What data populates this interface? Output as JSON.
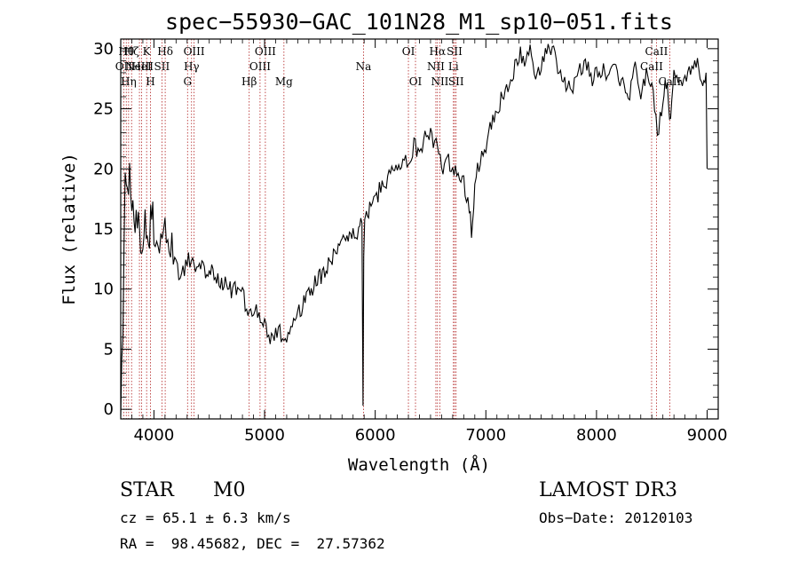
{
  "chart_data": {
    "type": "line",
    "title": "spec−55930−GAC_101N28_M1_sp10−051.fits",
    "xlabel": "Wavelength (Å)",
    "ylabel": "Flux (relative)",
    "xlim": [
      3700,
      9100
    ],
    "ylim": [
      -0.8,
      30.8
    ],
    "x_ticks": [
      4000,
      5000,
      6000,
      7000,
      8000,
      9000
    ],
    "x_tick_labels": [
      "4000",
      "5000",
      "6000",
      "7000",
      "8000",
      "9000"
    ],
    "y_ticks": [
      0,
      5,
      10,
      15,
      20,
      25,
      30
    ],
    "y_tick_labels": [
      "0",
      "5",
      "10",
      "15",
      "20",
      "25",
      "30"
    ],
    "series": [
      {
        "name": "spectrum",
        "color": "#000000",
        "x": [
          3700,
          3720,
          3740,
          3760,
          3780,
          3800,
          3830,
          3860,
          3890,
          3920,
          3950,
          3980,
          4000,
          4050,
          4100,
          4150,
          4200,
          4250,
          4300,
          4350,
          4400,
          4500,
          4600,
          4700,
          4800,
          4850,
          4900,
          4950,
          5000,
          5050,
          5100,
          5150,
          5200,
          5250,
          5300,
          5400,
          5500,
          5600,
          5700,
          5800,
          5850,
          5880,
          5890,
          5896,
          5905,
          5920,
          5950,
          6000,
          6050,
          6100,
          6150,
          6200,
          6250,
          6300,
          6350,
          6400,
          6450,
          6500,
          6550,
          6600,
          6650,
          6700,
          6750,
          6800,
          6850,
          6870,
          6900,
          6950,
          7000,
          7050,
          7100,
          7150,
          7200,
          7250,
          7300,
          7350,
          7400,
          7450,
          7500,
          7550,
          7600,
          7650,
          7700,
          7750,
          7800,
          7850,
          7900,
          7950,
          8000,
          8050,
          8100,
          8150,
          8200,
          8250,
          8300,
          8350,
          8400,
          8450,
          8500,
          8550,
          8600,
          8640,
          8660,
          8700,
          8750,
          8800,
          8850,
          8900,
          8950,
          8990,
          9000
        ],
        "y": [
          0.3,
          6,
          21,
          17,
          20.5,
          18,
          16,
          15,
          13,
          16,
          13,
          17,
          15,
          14,
          16,
          13.5,
          12,
          11,
          12.5,
          11.8,
          12,
          11.5,
          10.5,
          10,
          9.5,
          8.2,
          8.5,
          7.5,
          7,
          6.2,
          6.5,
          6.2,
          6,
          7,
          8,
          9.5,
          11,
          12.5,
          14,
          15,
          14.5,
          15.5,
          0.3,
          12,
          15.5,
          16,
          16.5,
          17.5,
          18.5,
          19,
          20,
          20.5,
          21,
          20,
          22,
          21.5,
          22.5,
          23,
          22,
          20,
          21,
          19.5,
          20,
          19,
          17,
          15,
          18.5,
          21,
          22,
          23.5,
          25,
          26,
          26.5,
          28,
          29.5,
          29,
          30,
          28,
          28.5,
          29.5,
          30,
          28,
          27.5,
          27,
          27,
          28,
          29,
          27.5,
          28,
          28.5,
          28,
          29,
          27.5,
          27,
          26.5,
          28.5,
          26,
          28,
          27.5,
          22.5,
          26,
          27.5,
          24,
          27.5,
          27,
          27.5,
          28.5,
          29,
          27,
          28,
          20
        ]
      }
    ],
    "lines": [
      {
        "wl": 3727,
        "label": "OII",
        "row": 2,
        "color": "#b22222"
      },
      {
        "wl": 3750,
        "label": "Hθ",
        "row": 1,
        "color": "#b22222"
      },
      {
        "wl": 3771,
        "label": "Hη",
        "row": 3,
        "color": "#b22222"
      },
      {
        "wl": 3798,
        "label": "Hζ",
        "row": 1,
        "color": "#b22222"
      },
      {
        "wl": 3869,
        "label": "NeIII",
        "row": 2,
        "color": "#b22222"
      },
      {
        "wl": 3889,
        "label": "HeI",
        "row": 2,
        "color": "#b22222"
      },
      {
        "wl": 3934,
        "label": "K",
        "row": 1,
        "color": "#b22222"
      },
      {
        "wl": 3969,
        "label": "H",
        "row": 3,
        "color": "#b22222"
      },
      {
        "wl": 4072,
        "label": "SII",
        "row": 2,
        "color": "#b22222"
      },
      {
        "wl": 4102,
        "label": "Hδ",
        "row": 1,
        "color": "#b22222"
      },
      {
        "wl": 4304,
        "label": "G",
        "row": 3,
        "color": "#b22222"
      },
      {
        "wl": 4340,
        "label": "Hγ",
        "row": 2,
        "color": "#b22222"
      },
      {
        "wl": 4363,
        "label": "OIII",
        "row": 1,
        "color": "#b22222"
      },
      {
        "wl": 4861,
        "label": "Hβ",
        "row": 3,
        "color": "#b22222"
      },
      {
        "wl": 4959,
        "label": "OIII",
        "row": 2,
        "color": "#b22222"
      },
      {
        "wl": 5007,
        "label": "OIII",
        "row": 1,
        "color": "#b22222"
      },
      {
        "wl": 5175,
        "label": "Mg",
        "row": 3,
        "color": "#b22222"
      },
      {
        "wl": 5894,
        "label": "Na",
        "row": 2,
        "color": "#b22222"
      },
      {
        "wl": 6300,
        "label": "OI",
        "row": 1,
        "color": "#b22222"
      },
      {
        "wl": 6364,
        "label": "OI",
        "row": 3,
        "color": "#b22222"
      },
      {
        "wl": 6548,
        "label": "NII",
        "row": 2,
        "color": "#b22222"
      },
      {
        "wl": 6563,
        "label": "Hα",
        "row": 1,
        "color": "#b22222"
      },
      {
        "wl": 6584,
        "label": "NII",
        "row": 3,
        "color": "#b22222"
      },
      {
        "wl": 6707,
        "label": "Li",
        "row": 2,
        "color": "#b22222"
      },
      {
        "wl": 6717,
        "label": "SII",
        "row": 1,
        "color": "#b22222"
      },
      {
        "wl": 6731,
        "label": "SII",
        "row": 3,
        "color": "#b22222"
      },
      {
        "wl": 8498,
        "label": "CaII",
        "row": 2,
        "color": "#b22222"
      },
      {
        "wl": 8542,
        "label": "CaII",
        "row": 1,
        "color": "#b22222"
      },
      {
        "wl": 8662,
        "label": "CaII",
        "row": 3,
        "color": "#b22222"
      }
    ]
  },
  "info": {
    "class": "STAR",
    "subclass": "M0",
    "survey": "LAMOST DR3",
    "cz": "cz = 65.1 ± 6.3 km/s",
    "obsdate": "Obs−Date: 20120103",
    "radec": "RA =  98.45682, DEC =  27.57362"
  }
}
